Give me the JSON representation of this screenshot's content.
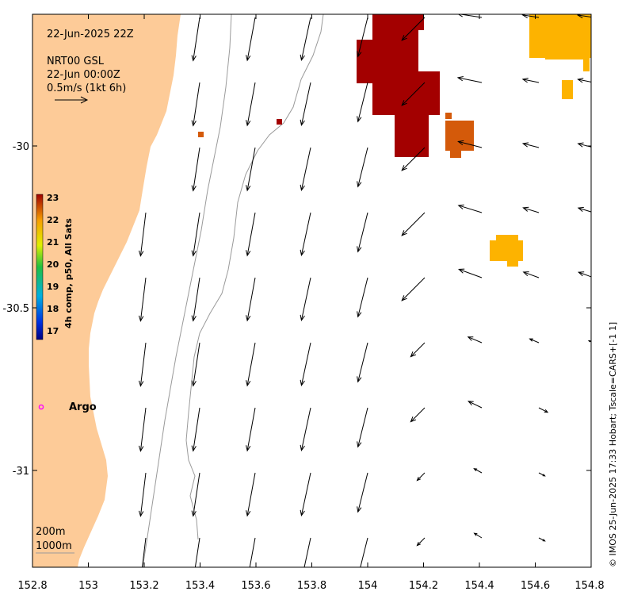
{
  "header": {
    "datetime": "22-Jun-2025 22Z",
    "source": "NRT00 GSL",
    "vector_time": "22-Jun 00:00Z",
    "vector_scale": "0.5m/s (1kt 6h)"
  },
  "colorbar": {
    "label": "4h comp, p50, All Sats",
    "ticks": [
      "23",
      "22",
      "21",
      "20",
      "19",
      "18",
      "17"
    ]
  },
  "axes": {
    "x_ticks": [
      "152.8",
      "153",
      "153.2",
      "153.4",
      "153.6",
      "153.8",
      "154",
      "154.2",
      "154.4",
      "154.6",
      "154.8"
    ],
    "y_ticks": [
      "-30",
      "-30.5",
      "-31"
    ]
  },
  "argo": {
    "label": "Argo",
    "marker_color": "#ff00ff"
  },
  "isobaths": {
    "line1": "200m",
    "line2": "1000m"
  },
  "credit": "© IMOS 25-Jun-2025 17:33 Hobart; Tscale=CARS+[-1 1]",
  "colors": {
    "land": "#fdcb98",
    "sst_23": "#a30000",
    "sst_22_5": "#d45a0a",
    "sst_22": "#fdb300"
  }
}
